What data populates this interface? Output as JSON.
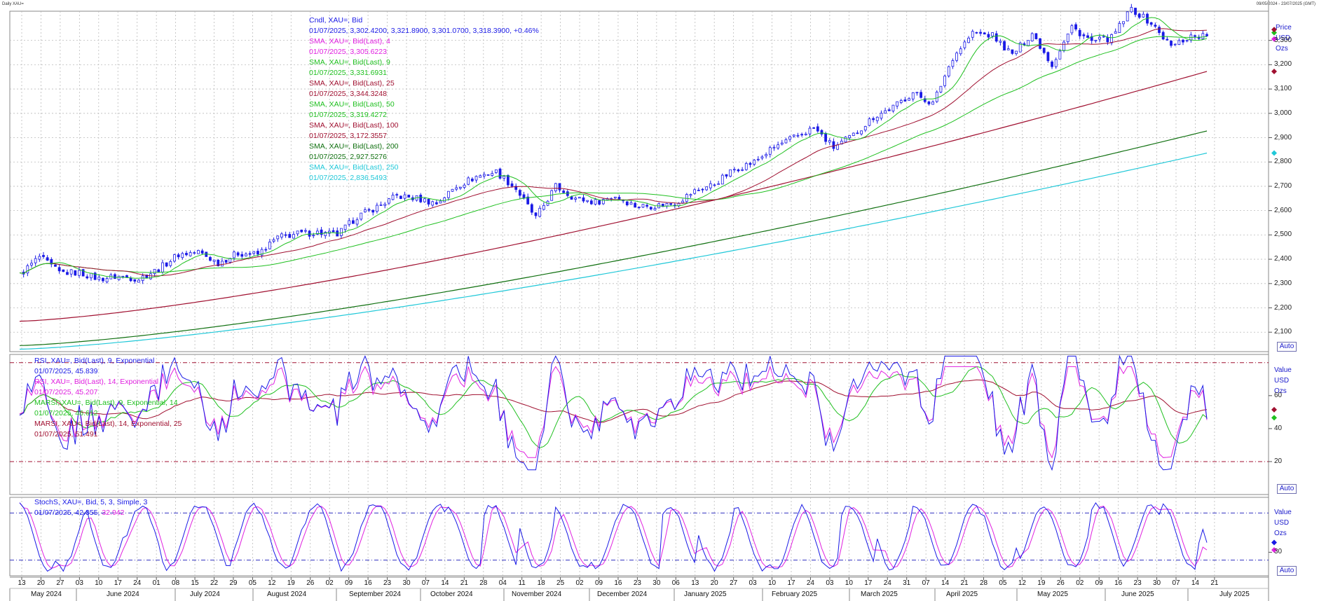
{
  "window": {
    "title_left": "Daily XAU=",
    "title_right": "09/05/2024 - 23/07/2025 (GMT)"
  },
  "panels": {
    "price": {
      "unit": [
        "Price",
        "USD",
        "Ozs"
      ],
      "auto": "Auto",
      "legend": [
        {
          "text": "Cndl, XAU=, Bid",
          "color": "#1a1ae6"
        },
        {
          "text": "01/07/2025, 3,302.4200, 3,321.8900, 3,301.0700, 3,318.3900, +0.46%",
          "color": "#1a1ae6"
        },
        {
          "text": "SMA, XAU=, Bid(Last),  4",
          "color": "#e020e0"
        },
        {
          "text": "01/07/2025, 3,305.6223",
          "color": "#e020e0"
        },
        {
          "text": "SMA, XAU=, Bid(Last),  9",
          "color": "#20c020"
        },
        {
          "text": "01/07/2025, 3,331.6931",
          "color": "#20c020"
        },
        {
          "text": "SMA, XAU=, Bid(Last),  25",
          "color": "#a01030"
        },
        {
          "text": "01/07/2025, 3,344.3248",
          "color": "#a01030"
        },
        {
          "text": "SMA, XAU=, Bid(Last),  50",
          "color": "#20c020"
        },
        {
          "text": "01/07/2025, 3,319.4272",
          "color": "#20c020"
        },
        {
          "text": "SMA, XAU=, Bid(Last),  100",
          "color": "#a01030"
        },
        {
          "text": "01/07/2025, 3,172.3557",
          "color": "#a01030"
        },
        {
          "text": "SMA, XAU=, Bid(Last),  200",
          "color": "#107010"
        },
        {
          "text": "01/07/2025, 2,927.5276",
          "color": "#107010"
        },
        {
          "text": "SMA, XAU=, Bid(Last),  250",
          "color": "#20c8d8"
        },
        {
          "text": "01/07/2025, 2,836.5493",
          "color": "#20c8d8"
        }
      ],
      "yticks": [
        "3,300",
        "3,200",
        "3,100",
        "3,000",
        "2,900",
        "2,800",
        "2,700",
        "2,600",
        "2,500",
        "2,400",
        "2,300",
        "2,200",
        "2,100"
      ]
    },
    "rsi": {
      "unit": [
        "Value",
        "USD",
        "Ozs"
      ],
      "auto": "Auto",
      "legend": [
        {
          "text": "RSI, XAU=, Bid(Last),  9, Exponential",
          "color": "#1a1ae6"
        },
        {
          "text": "01/07/2025, 45.839",
          "color": "#1a1ae6"
        },
        {
          "text": "RSI, XAU=, Bid(Last),  14, Exponential",
          "color": "#e020e0"
        },
        {
          "text": "01/07/2025, 45.207",
          "color": "#e020e0"
        },
        {
          "text": "MARSI, XAU=, Bid(Last),  9, Exponential, 14",
          "color": "#20c020"
        },
        {
          "text": "01/07/2025, 46.612",
          "color": "#20c020"
        },
        {
          "text": "MARSI, XAU=, Bid(Last),  14, Exponential, 25",
          "color": "#a01030"
        },
        {
          "text": "01/07/2025, 51.491",
          "color": "#a01030"
        }
      ],
      "yticks": [
        "60",
        "40",
        "20"
      ]
    },
    "stoch": {
      "unit": [
        "Value",
        "USD",
        "Ozs"
      ],
      "auto": "Auto",
      "legend": [
        {
          "text": "StochS, XAU=, Bid,  5, 3, Simple, 3",
          "color": "#1a1ae6"
        },
        {
          "text": "01/07/2025, 42.355, 32.942",
          "color": "#1a1ae6",
          "highlight": "32.942",
          "highlight_color": "#e020e0"
        }
      ],
      "yticks": [
        "30"
      ]
    }
  },
  "x_axis": {
    "days": [
      "13",
      "20",
      "27",
      "03",
      "10",
      "17",
      "24",
      "01",
      "08",
      "15",
      "22",
      "29",
      "05",
      "12",
      "19",
      "26",
      "02",
      "09",
      "16",
      "23",
      "30",
      "07",
      "14",
      "21",
      "28",
      "04",
      "11",
      "18",
      "25",
      "02",
      "09",
      "16",
      "23",
      "30",
      "06",
      "13",
      "20",
      "27",
      "03",
      "10",
      "17",
      "24",
      "03",
      "10",
      "17",
      "24",
      "31",
      "07",
      "14",
      "21",
      "28",
      "05",
      "12",
      "19",
      "26",
      "02",
      "09",
      "16",
      "23",
      "30",
      "07",
      "14",
      "21"
    ],
    "months": [
      "May 2024",
      "June 2024",
      "July 2024",
      "August 2024",
      "September 2024",
      "October 2024",
      "November 2024",
      "December 2024",
      "January 2025",
      "February 2025",
      "March 2025",
      "April 2025",
      "May 2025",
      "June 2025",
      "July 2025"
    ]
  },
  "colors": {
    "price": "#1a1ae6",
    "sma4": "#e020e0",
    "sma9": "#20c020",
    "sma25": "#a01030",
    "sma50": "#20c020",
    "sma100": "#a01030",
    "sma200": "#107010",
    "sma250": "#20c8d8",
    "grid": "#bbbbbb",
    "band": "#a01030",
    "stoch_band": "#3030c0"
  },
  "chart_data": [
    {
      "type": "candlestick",
      "title": "Cndl, XAU=, Bid",
      "ylabel": "Price USD Ozs",
      "ylim": [
        2020,
        3420
      ],
      "approx_close_by_week": [
        [
          "2024-05-13",
          2335
        ],
        [
          "2024-05-20",
          2410
        ],
        [
          "2024-05-27",
          2345
        ],
        [
          "2024-06-03",
          2345
        ],
        [
          "2024-06-10",
          2320
        ],
        [
          "2024-06-17",
          2330
        ],
        [
          "2024-06-24",
          2320
        ],
        [
          "2024-07-01",
          2360
        ],
        [
          "2024-07-08",
          2420
        ],
        [
          "2024-07-15",
          2430
        ],
        [
          "2024-07-22",
          2385
        ],
        [
          "2024-07-29",
          2425
        ],
        [
          "2024-08-05",
          2420
        ],
        [
          "2024-08-12",
          2490
        ],
        [
          "2024-08-19",
          2505
        ],
        [
          "2024-08-26",
          2510
        ],
        [
          "2024-09-02",
          2500
        ],
        [
          "2024-09-09",
          2575
        ],
        [
          "2024-09-16",
          2615
        ],
        [
          "2024-09-23",
          2660
        ],
        [
          "2024-09-30",
          2650
        ],
        [
          "2024-10-07",
          2630
        ],
        [
          "2024-10-14",
          2700
        ],
        [
          "2024-10-21",
          2740
        ],
        [
          "2024-10-28",
          2760
        ],
        [
          "2024-11-04",
          2690
        ],
        [
          "2024-11-11",
          2570
        ],
        [
          "2024-11-18",
          2700
        ],
        [
          "2024-11-25",
          2650
        ],
        [
          "2024-12-02",
          2635
        ],
        [
          "2024-12-09",
          2660
        ],
        [
          "2024-12-16",
          2620
        ],
        [
          "2024-12-23",
          2620
        ],
        [
          "2024-12-30",
          2630
        ],
        [
          "2025-01-06",
          2680
        ],
        [
          "2025-01-13",
          2710
        ],
        [
          "2025-01-20",
          2770
        ],
        [
          "2025-01-27",
          2800
        ],
        [
          "2025-02-03",
          2860
        ],
        [
          "2025-02-10",
          2900
        ],
        [
          "2025-02-17",
          2940
        ],
        [
          "2025-02-24",
          2860
        ],
        [
          "2025-03-03",
          2910
        ],
        [
          "2025-03-10",
          2985
        ],
        [
          "2025-03-17",
          3025
        ],
        [
          "2025-03-24",
          3085
        ],
        [
          "2025-03-31",
          3040
        ],
        [
          "2025-04-07",
          3230
        ],
        [
          "2025-04-14",
          3330
        ],
        [
          "2025-04-21",
          3320
        ],
        [
          "2025-04-28",
          3240
        ],
        [
          "2025-05-05",
          3330
        ],
        [
          "2025-05-12",
          3200
        ],
        [
          "2025-05-19",
          3355
        ],
        [
          "2025-05-26",
          3295
        ],
        [
          "2025-06-02",
          3310
        ],
        [
          "2025-06-09",
          3430
        ],
        [
          "2025-06-16",
          3370
        ],
        [
          "2025-06-23",
          3275
        ],
        [
          "2025-06-30",
          3318
        ]
      ],
      "last_bar": {
        "date": "01/07/2025",
        "open": 3302.42,
        "high": 3321.89,
        "low": 3301.07,
        "close": 3318.39,
        "change": "+0.46%"
      },
      "series": [
        {
          "name": "SMA, XAU=, Bid(Last),  4",
          "last": 3305.6223
        },
        {
          "name": "SMA, XAU=, Bid(Last),  9",
          "last": 3331.6931
        },
        {
          "name": "SMA, XAU=, Bid(Last),  25",
          "last": 3344.3248
        },
        {
          "name": "SMA, XAU=, Bid(Last),  50",
          "last": 3319.4272
        },
        {
          "name": "SMA, XAU=, Bid(Last),  100",
          "last": 3172.3557
        },
        {
          "name": "SMA, XAU=, Bid(Last),  200",
          "last": 2927.5276
        },
        {
          "name": "SMA, XAU=, Bid(Last),  250",
          "last": 2836.5493
        }
      ]
    },
    {
      "type": "line",
      "title": "RSI",
      "ylim": [
        0,
        85
      ],
      "bands": [
        20,
        80
      ],
      "series": [
        {
          "name": "RSI, XAU=, Bid(Last),  9, Exponential",
          "last": 45.839
        },
        {
          "name": "RSI, XAU=, Bid(Last),  14, Exponential",
          "last": 45.207
        },
        {
          "name": "MARSI, XAU=, Bid(Last),  9, Exponential, 14",
          "last": 46.612
        },
        {
          "name": "MARSI, XAU=, Bid(Last),  14, Exponential, 25",
          "last": 51.491
        }
      ]
    },
    {
      "type": "line",
      "title": "StochS, XAU=, Bid,  5, 3, Simple, 3",
      "ylim": [
        0,
        100
      ],
      "bands": [
        20,
        80
      ],
      "series": [
        {
          "name": "%K",
          "last": 42.355
        },
        {
          "name": "%D",
          "last": 32.942
        }
      ]
    }
  ]
}
